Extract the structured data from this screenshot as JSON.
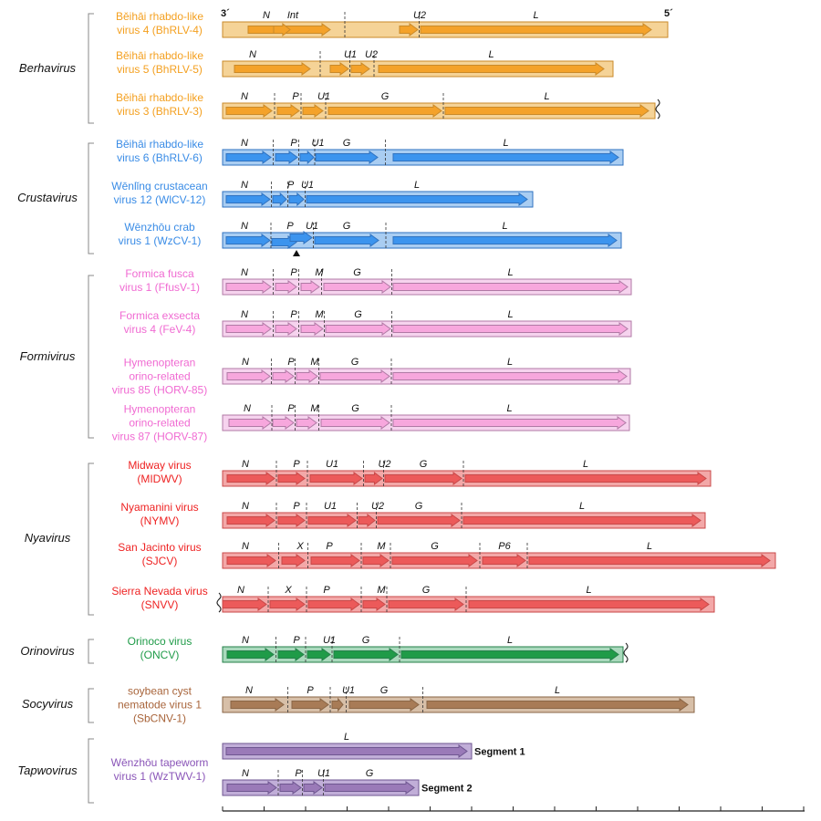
{
  "terminals": {
    "three_prime": "3´",
    "five_prime": "5´"
  },
  "colors": {
    "Berhavirus": {
      "bg": "#f5d397",
      "arrow": "#f4a22a",
      "border": "#c98a2a",
      "text": "#f4a020"
    },
    "Crustavirus": {
      "bg": "#a9cdf2",
      "arrow": "#3c94ee",
      "border": "#2f72c0",
      "text": "#3a8ce6"
    },
    "Formivirus": {
      "bg": "#f6d3ee",
      "arrow": "#f7a7dd",
      "border": "#b07aa5",
      "text": "#f06ad2"
    },
    "Nyavirus": {
      "bg": "#f3a8a8",
      "arrow": "#ec5a5a",
      "border": "#c84848",
      "text": "#ee2222"
    },
    "Orinovirus": {
      "bg": "#a9d9bc",
      "arrow": "#1f9b48",
      "border": "#25804a",
      "text": "#1f9b48"
    },
    "Socyvirus": {
      "bg": "#d7bfa8",
      "arrow": "#a87b56",
      "border": "#8a6646",
      "text": "#a8643a"
    },
    "Tapwovirus": {
      "bg": "#c1aed8",
      "arrow": "#9a7ab8",
      "border": "#6e5690",
      "text": "#8a55b8"
    }
  },
  "genera": [
    {
      "name": "Berhavirus",
      "viruses": [
        {
          "name": [
            "Běihāi rhabdo-like",
            "virus 4 (BhRLV-4)"
          ],
          "genome_end": 732,
          "show_terminals": true,
          "genes": [
            {
              "label": "N",
              "start": 272,
              "end": 362
            },
            {
              "label": "Int",
              "start": 300,
              "end": 318
            },
            {
              "label": "U2",
              "start": 438,
              "end": 458
            },
            {
              "label": "L",
              "start": 461,
              "end": 714
            }
          ]
        },
        {
          "name": [
            "Běihāi rhabdo-like",
            "virus 5 (BhRLV-5)"
          ],
          "genome_end": 672,
          "genes": [
            {
              "label": "N",
              "start": 257,
              "end": 340
            },
            {
              "label": "U1",
              "start": 362,
              "end": 382
            },
            {
              "label": "U2",
              "start": 385,
              "end": 405
            },
            {
              "label": "L",
              "start": 415,
              "end": 662
            }
          ]
        },
        {
          "name": [
            "Běihāi rhabdo-like",
            "virus 3 (BhRLV-3)"
          ],
          "genome_end": 718,
          "truncated": true,
          "genes": [
            {
              "label": "N",
              "start": 248,
              "end": 298
            },
            {
              "label": "P",
              "start": 304,
              "end": 328
            },
            {
              "label": "U1",
              "start": 332,
              "end": 354
            },
            {
              "label": "G",
              "start": 360,
              "end": 484
            },
            {
              "label": "L",
              "start": 488,
              "end": 711
            }
          ]
        }
      ]
    },
    {
      "name": "Crustavirus",
      "viruses": [
        {
          "name": [
            "Běihāi rhabdo-like",
            "virus 6 (BhRLV-6)"
          ],
          "genome_end": 683,
          "genes": [
            {
              "label": "N",
              "start": 248,
              "end": 297
            },
            {
              "label": "P",
              "start": 302,
              "end": 326
            },
            {
              "label": "U1",
              "start": 329,
              "end": 344
            },
            {
              "label": "G",
              "start": 346,
              "end": 414
            },
            {
              "label": "L",
              "start": 431,
              "end": 678
            }
          ]
        },
        {
          "name": [
            "Wēnlǐng crustacean",
            "virus 12 (WlCV-12)"
          ],
          "genome_end": 584,
          "genes": [
            {
              "label": "N",
              "start": 248,
              "end": 296
            },
            {
              "label": "P",
              "start": 299,
              "end": 314
            },
            {
              "label": "U1",
              "start": 317,
              "end": 333
            },
            {
              "label": "L",
              "start": 336,
              "end": 578
            }
          ]
        },
        {
          "name": [
            "Wēnzhōu crab",
            "virus 1 (WzCV-1)"
          ],
          "genome_end": 681,
          "marker": true,
          "genes": [
            {
              "label": "N",
              "start": 248,
              "end": 296
            },
            {
              "label": "P",
              "start": 298,
              "end": 325
            },
            {
              "label": "U1",
              "start": 318,
              "end": 342
            },
            {
              "label": "G",
              "start": 345,
              "end": 415
            },
            {
              "label": "L",
              "start": 431,
              "end": 676
            }
          ]
        }
      ]
    },
    {
      "name": "Formivirus",
      "viruses": [
        {
          "name": [
            "Formica fusca",
            "virus 1 (FfusV-1)"
          ],
          "genome_end": 692,
          "genes": [
            {
              "label": "N",
              "start": 248,
              "end": 297
            },
            {
              "label": "P",
              "start": 302,
              "end": 325
            },
            {
              "label": "M",
              "start": 330,
              "end": 350
            },
            {
              "label": "G",
              "start": 355,
              "end": 428
            },
            {
              "label": "L",
              "start": 431,
              "end": 688
            }
          ]
        },
        {
          "name": [
            "Formica exsecta",
            "virus 4 (FeV-4)"
          ],
          "genome_end": 692,
          "genes": [
            {
              "label": "N",
              "start": 248,
              "end": 297
            },
            {
              "label": "P",
              "start": 302,
              "end": 325
            },
            {
              "label": "M",
              "start": 330,
              "end": 354
            },
            {
              "label": "G",
              "start": 357,
              "end": 428
            },
            {
              "label": "L",
              "start": 431,
              "end": 688
            }
          ]
        },
        {
          "name": [
            "Hymenopteran",
            "orino-related",
            "virus 85 (HORV-85)"
          ],
          "genome_end": 691,
          "genes": [
            {
              "label": "N",
              "start": 249,
              "end": 296
            },
            {
              "label": "P",
              "start": 299,
              "end": 322
            },
            {
              "label": "M",
              "start": 325,
              "end": 348
            },
            {
              "label": "G",
              "start": 351,
              "end": 427
            },
            {
              "label": "L",
              "start": 431,
              "end": 687
            }
          ]
        },
        {
          "name": [
            "Hymenopteran",
            "orino-related",
            "virus 87 (HORV-87)"
          ],
          "genome_end": 690,
          "genes": [
            {
              "label": "N",
              "start": 251,
              "end": 297
            },
            {
              "label": "P",
              "start": 299,
              "end": 322
            },
            {
              "label": "M",
              "start": 325,
              "end": 347
            },
            {
              "label": "G",
              "start": 352,
              "end": 427
            },
            {
              "label": "L",
              "start": 431,
              "end": 686
            }
          ]
        }
      ]
    },
    {
      "name": "Nyavirus",
      "viruses": [
        {
          "name": [
            "Midway virus",
            "(MIDWV)"
          ],
          "genome_end": 779,
          "genes": [
            {
              "label": "N",
              "start": 249,
              "end": 301
            },
            {
              "label": "P",
              "start": 305,
              "end": 334
            },
            {
              "label": "U1",
              "start": 340,
              "end": 397
            },
            {
              "label": "U2",
              "start": 400,
              "end": 419
            },
            {
              "label": "G",
              "start": 422,
              "end": 506
            },
            {
              "label": "L",
              "start": 510,
              "end": 774
            }
          ]
        },
        {
          "name": [
            "Nyamanini virus",
            "(NYMV)"
          ],
          "genome_end": 773,
          "genes": [
            {
              "label": "N",
              "start": 249,
              "end": 301
            },
            {
              "label": "P",
              "start": 305,
              "end": 334
            },
            {
              "label": "U1",
              "start": 338,
              "end": 390
            },
            {
              "label": "U2",
              "start": 393,
              "end": 411
            },
            {
              "label": "G",
              "start": 414,
              "end": 504
            },
            {
              "label": "L",
              "start": 508,
              "end": 768
            }
          ]
        },
        {
          "name": [
            "San Jacinto virus",
            "(SJCV)"
          ],
          "genome_end": 850,
          "genes": [
            {
              "label": "N",
              "start": 249,
              "end": 302
            },
            {
              "label": "X",
              "start": 309,
              "end": 334
            },
            {
              "label": "P",
              "start": 341,
              "end": 394
            },
            {
              "label": "M",
              "start": 398,
              "end": 426
            },
            {
              "label": "G",
              "start": 430,
              "end": 523
            },
            {
              "label": "P6",
              "start": 529,
              "end": 576
            },
            {
              "label": "L",
              "start": 580,
              "end": 844
            }
          ]
        },
        {
          "name": [
            "Sierra Nevada virus",
            "(SNVV)"
          ],
          "genome_end": 783,
          "truncated_left": true,
          "genes": [
            {
              "label": "N",
              "start": 244,
              "end": 292
            },
            {
              "label": "X",
              "start": 296,
              "end": 334
            },
            {
              "label": "P",
              "start": 338,
              "end": 394
            },
            {
              "label": "M",
              "start": 398,
              "end": 422
            },
            {
              "label": "G",
              "start": 426,
              "end": 508
            },
            {
              "label": "L",
              "start": 514,
              "end": 777
            }
          ]
        }
      ]
    },
    {
      "name": "Orinovirus",
      "viruses": [
        {
          "name": [
            "Orinoco virus",
            "(ONCV)"
          ],
          "genome_end": 683,
          "truncated": true,
          "genes": [
            {
              "label": "N",
              "start": 249,
              "end": 300
            },
            {
              "label": "P",
              "start": 305,
              "end": 333
            },
            {
              "label": "U1",
              "start": 337,
              "end": 362
            },
            {
              "label": "G",
              "start": 366,
              "end": 436
            },
            {
              "label": "L",
              "start": 440,
              "end": 678
            }
          ]
        }
      ]
    },
    {
      "name": "Socyvirus",
      "viruses": [
        {
          "name": [
            "soybean cyst",
            "nematode virus 1",
            "(SbCNV-1)"
          ],
          "genome_end": 761,
          "genes": [
            {
              "label": "N",
              "start": 253,
              "end": 311
            },
            {
              "label": "P",
              "start": 320,
              "end": 360
            },
            {
              "label": "U1",
              "start": 364,
              "end": 376
            },
            {
              "label": "G",
              "start": 383,
              "end": 459
            },
            {
              "label": "L",
              "start": 468,
              "end": 754
            }
          ]
        }
      ]
    },
    {
      "name": "Tapwovirus",
      "segmented": true,
      "viruses": [
        {
          "segments": [
            {
              "label": "Segment 1",
              "genome_end": 517,
              "genes": [
                {
                  "label": "L",
                  "start": 248,
                  "end": 512
                }
              ]
            },
            {
              "label": "Segment 2",
              "genome_end": 459,
              "genes": [
                {
                  "label": "N",
                  "start": 249,
                  "end": 303
                },
                {
                  "label": "P",
                  "start": 307,
                  "end": 330
                },
                {
                  "label": "U1",
                  "start": 333,
                  "end": 353
                },
                {
                  "label": "G",
                  "start": 356,
                  "end": 454
                }
              ]
            }
          ],
          "name": [
            "Wēnzhōu tapeworm",
            "virus 1 (WzTWV-1)"
          ]
        }
      ]
    }
  ]
}
